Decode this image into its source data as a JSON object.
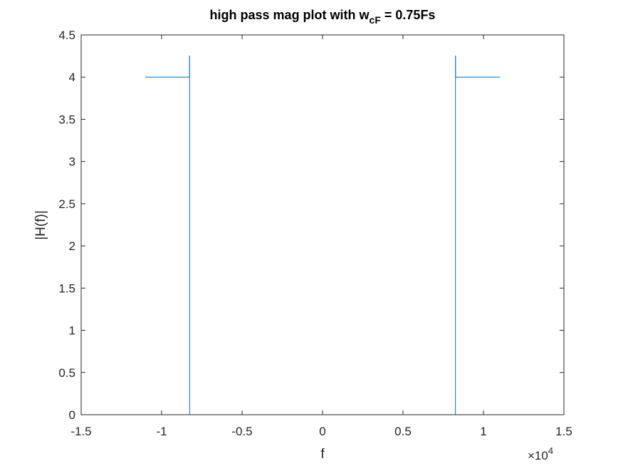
{
  "chart_data": {
    "type": "line",
    "title": {
      "main": "high pass mag plot with w",
      "subscript": "cF",
      "suffix": " = 0.75Fs"
    },
    "xlabel": "f",
    "ylabel": "|H(f)|",
    "x_exponent_label": {
      "base": "×10",
      "exponent": "4"
    },
    "xlim": [
      -15000,
      15000
    ],
    "ylim": [
      0,
      4.5
    ],
    "x_ticks": [
      -15000,
      -10000,
      -5000,
      0,
      5000,
      10000,
      15000
    ],
    "x_tick_labels": [
      "-1.5",
      "-1",
      "-0.5",
      "0",
      "0.5",
      "1",
      "1.5"
    ],
    "y_ticks": [
      0,
      0.5,
      1,
      1.5,
      2,
      2.5,
      3,
      3.5,
      4,
      4.5
    ],
    "y_tick_labels": [
      "0",
      "0.5",
      "1",
      "1.5",
      "2",
      "2.5",
      "3",
      "3.5",
      "4",
      "4.5"
    ],
    "grid": false,
    "box": true,
    "series": [
      {
        "color": "#0072BD",
        "x": [
          -11025,
          -8270,
          -8270,
          -8260,
          -8260,
          8260,
          8260,
          8270,
          8270,
          11025
        ],
        "y": [
          4,
          4,
          4.25,
          4.25,
          0,
          0,
          4.25,
          4.25,
          4,
          4
        ]
      }
    ]
  }
}
